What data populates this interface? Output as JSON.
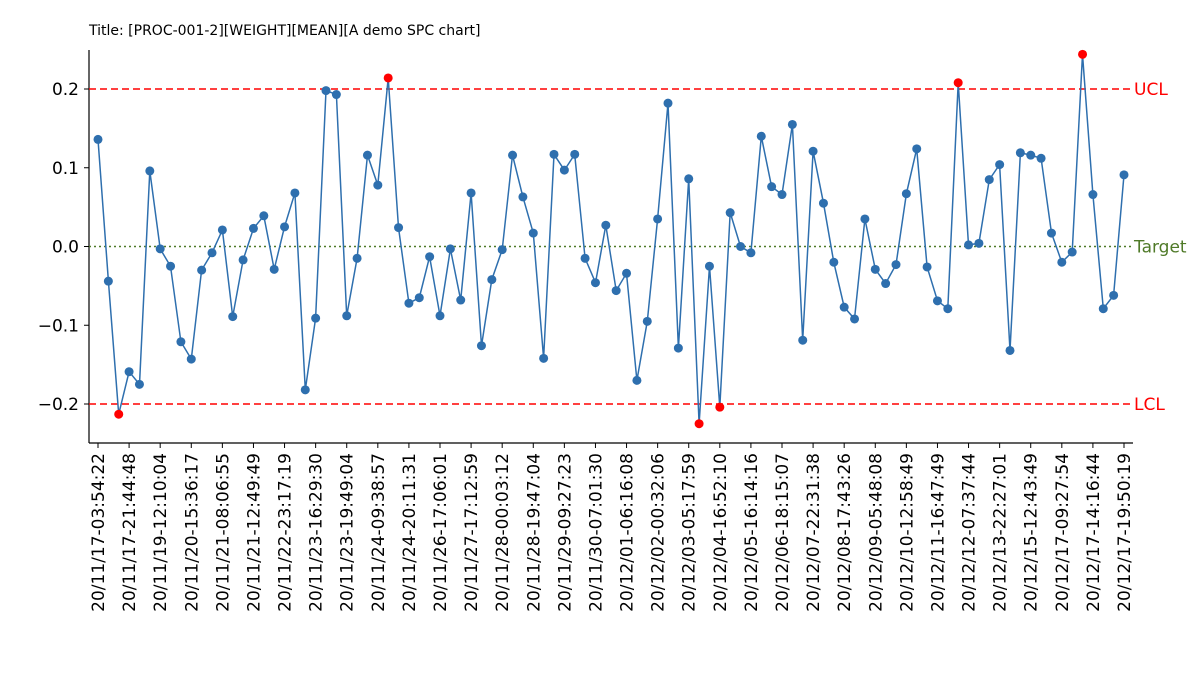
{
  "chart_data": {
    "type": "line",
    "title": "Title: [PROC-001-2][WEIGHT][MEAN][A demo SPC chart]",
    "xlabel": "",
    "ylabel": "",
    "ylim": [
      -0.25,
      0.25
    ],
    "y_ticks": [
      -0.2,
      -0.1,
      0.0,
      0.1,
      0.2
    ],
    "y_tick_labels": [
      "−0.2",
      "−0.1",
      "0.0",
      "0.1",
      "0.2"
    ],
    "grid": false,
    "x_ticks": [
      {
        "index": 0,
        "label": "20/11/17-03:54:22"
      },
      {
        "index": 3,
        "label": "20/11/17-21:44:48"
      },
      {
        "index": 6,
        "label": "20/11/19-12:10:04"
      },
      {
        "index": 9,
        "label": "20/11/20-15:36:17"
      },
      {
        "index": 12,
        "label": "20/11/21-08:06:55"
      },
      {
        "index": 15,
        "label": "20/11/21-12:49:49"
      },
      {
        "index": 18,
        "label": "20/11/22-23:17:19"
      },
      {
        "index": 21,
        "label": "20/11/23-16:29:30"
      },
      {
        "index": 24,
        "label": "20/11/23-19:49:04"
      },
      {
        "index": 27,
        "label": "20/11/24-09:38:57"
      },
      {
        "index": 30,
        "label": "20/11/24-20:11:31"
      },
      {
        "index": 33,
        "label": "20/11/26-17:06:01"
      },
      {
        "index": 36,
        "label": "20/11/27-17:12:59"
      },
      {
        "index": 39,
        "label": "20/11/28-00:03:12"
      },
      {
        "index": 42,
        "label": "20/11/28-19:47:04"
      },
      {
        "index": 45,
        "label": "20/11/29-09:27:23"
      },
      {
        "index": 48,
        "label": "20/11/30-07:01:30"
      },
      {
        "index": 51,
        "label": "20/12/01-06:16:08"
      },
      {
        "index": 54,
        "label": "20/12/02-00:32:06"
      },
      {
        "index": 57,
        "label": "20/12/03-05:17:59"
      },
      {
        "index": 60,
        "label": "20/12/04-16:52:10"
      },
      {
        "index": 63,
        "label": "20/12/05-16:14:16"
      },
      {
        "index": 66,
        "label": "20/12/06-18:15:07"
      },
      {
        "index": 69,
        "label": "20/12/07-22:31:38"
      },
      {
        "index": 72,
        "label": "20/12/08-17:43:26"
      },
      {
        "index": 75,
        "label": "20/12/09-05:48:08"
      },
      {
        "index": 78,
        "label": "20/12/10-12:58:49"
      },
      {
        "index": 81,
        "label": "20/12/11-16:47:49"
      },
      {
        "index": 84,
        "label": "20/12/12-07:37:44"
      },
      {
        "index": 87,
        "label": "20/12/13-22:27:01"
      },
      {
        "index": 90,
        "label": "20/12/15-12:43:49"
      },
      {
        "index": 93,
        "label": "20/12/17-09:27:54"
      },
      {
        "index": 96,
        "label": "20/12/17-14:16:44"
      },
      {
        "index": 99,
        "label": "20/12/17-19:50:19"
      }
    ],
    "series": [
      {
        "color": "#2e6fae",
        "values": [
          0.136,
          -0.044,
          -0.213,
          -0.159,
          -0.175,
          0.096,
          -0.003,
          -0.025,
          -0.121,
          -0.143,
          -0.03,
          -0.008,
          0.021,
          -0.089,
          -0.017,
          0.023,
          0.039,
          -0.029,
          0.025,
          0.068,
          -0.182,
          -0.091,
          0.198,
          0.193,
          -0.088,
          -0.015,
          0.116,
          0.078,
          0.214,
          0.024,
          -0.072,
          -0.065,
          -0.013,
          -0.088,
          -0.003,
          -0.068,
          0.068,
          -0.126,
          -0.042,
          -0.004,
          0.116,
          0.063,
          0.017,
          -0.142,
          0.117,
          0.097,
          0.117,
          -0.015,
          -0.046,
          0.027,
          -0.056,
          -0.034,
          -0.17,
          -0.095,
          0.035,
          0.182,
          -0.129,
          0.086,
          -0.225,
          -0.025,
          -0.204,
          0.043,
          0.0,
          -0.008,
          0.14,
          0.076,
          0.066,
          0.155,
          -0.119,
          0.121,
          0.055,
          -0.02,
          -0.077,
          -0.092,
          0.035,
          -0.029,
          -0.047,
          -0.023,
          0.067,
          0.124,
          -0.026,
          -0.069,
          -0.079,
          0.208,
          0.002,
          0.004,
          0.085,
          0.104,
          -0.132,
          0.119,
          0.116,
          0.112,
          0.017,
          -0.02,
          -0.007,
          0.244,
          0.066,
          -0.079,
          -0.062,
          0.091
        ]
      }
    ],
    "out_of_control_color": "#ff0000",
    "control_lines": [
      {
        "label": "UCL",
        "value": 0.2,
        "color": "#ff0000",
        "style": "dashed"
      },
      {
        "label": "Target",
        "value": 0.0,
        "color": "#4f7a28",
        "style": "dotted"
      },
      {
        "label": "LCL",
        "value": -0.2,
        "color": "#ff0000",
        "style": "dashed"
      }
    ]
  }
}
